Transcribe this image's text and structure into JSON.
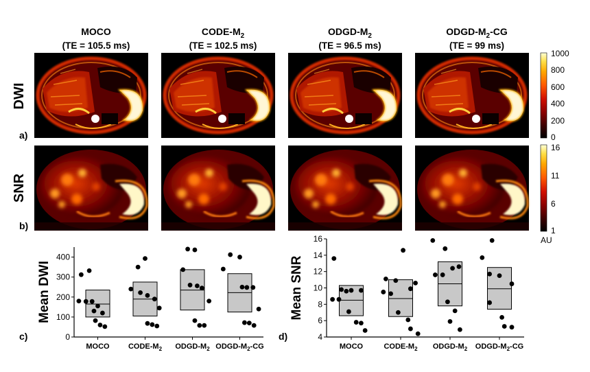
{
  "columns": [
    {
      "name": "MOCO",
      "sub": "",
      "te": "(TE = 105.5 ms)"
    },
    {
      "name": "CODE-M",
      "sub": "2",
      "te": "(TE = 102.5 ms)"
    },
    {
      "name": "ODGD-M",
      "sub": "2",
      "te": "(TE = 96.5 ms)"
    },
    {
      "name": "ODGD-M",
      "sub": "2",
      "suffix": "-CG",
      "te": "(TE = 99 ms)"
    }
  ],
  "rows": {
    "dwi_label": "DWI",
    "snr_label": "SNR",
    "a_label": "a)",
    "b_label": "b)",
    "c_label": "c)",
    "d_label": "d)"
  },
  "colorbars": {
    "dwi_ticks": [
      "1000",
      "800",
      "600",
      "400",
      "200",
      "0"
    ],
    "snr_ticks": [
      "16",
      "11",
      "6",
      "1"
    ],
    "snr_unit": "AU",
    "colormap": [
      "#000000",
      "#3a0000",
      "#8a0000",
      "#d21000",
      "#ff5a00",
      "#ffa800",
      "#ffe04a",
      "#ffffd8"
    ]
  },
  "chart_data": [
    {
      "type": "scatter",
      "ylabel": "Mean DWI",
      "ylim": [
        0,
        450
      ],
      "yticks": [
        0,
        100,
        200,
        300,
        400
      ],
      "categories": [
        "MOCO",
        "CODE-M2",
        "ODGD-M2",
        "ODGD-M2-CG"
      ],
      "tick_labels": [
        {
          "main": "MOCO",
          "sub": "",
          "suffix": ""
        },
        {
          "main": "CODE-M",
          "sub": "2",
          "suffix": ""
        },
        {
          "main": "ODGD-M",
          "sub": "2",
          "suffix": ""
        },
        {
          "main": "ODGD-M",
          "sub": "2",
          "suffix": "-CG"
        }
      ],
      "boxes": [
        {
          "low": 100,
          "mean": 165,
          "high": 235
        },
        {
          "low": 105,
          "mean": 190,
          "high": 275
        },
        {
          "low": 135,
          "mean": 235,
          "high": 337
        },
        {
          "low": 125,
          "mean": 222,
          "high": 317
        }
      ],
      "points": [
        [
          [
            -0.35,
            312
          ],
          [
            -0.18,
            332
          ],
          [
            -0.4,
            180
          ],
          [
            -0.25,
            178
          ],
          [
            -0.12,
            178
          ],
          [
            -0.08,
            130
          ],
          [
            0.0,
            155
          ],
          [
            0.1,
            120
          ],
          [
            -0.05,
            82
          ],
          [
            0.05,
            60
          ],
          [
            0.15,
            52
          ]
        ],
        [
          [
            0.0,
            393
          ],
          [
            -0.15,
            350
          ],
          [
            -0.3,
            240
          ],
          [
            -0.1,
            222
          ],
          [
            0.05,
            208
          ],
          [
            0.2,
            190
          ],
          [
            0.3,
            145
          ],
          [
            0.05,
            68
          ],
          [
            0.15,
            62
          ],
          [
            0.25,
            55
          ]
        ],
        [
          [
            -0.1,
            440
          ],
          [
            0.05,
            436
          ],
          [
            -0.2,
            337
          ],
          [
            -0.05,
            260
          ],
          [
            0.1,
            256
          ],
          [
            0.2,
            245
          ],
          [
            0.35,
            180
          ],
          [
            0.05,
            82
          ],
          [
            0.15,
            58
          ],
          [
            0.25,
            58
          ]
        ],
        [
          [
            -0.2,
            412
          ],
          [
            0.0,
            400
          ],
          [
            -0.35,
            340
          ],
          [
            0.05,
            250
          ],
          [
            0.15,
            248
          ],
          [
            0.28,
            248
          ],
          [
            0.4,
            140
          ],
          [
            0.1,
            72
          ],
          [
            0.2,
            70
          ],
          [
            0.3,
            58
          ]
        ]
      ]
    },
    {
      "type": "scatter",
      "ylabel": "Mean SNR",
      "ylim": [
        4,
        16
      ],
      "yticks": [
        4,
        6,
        8,
        10,
        12,
        14,
        16
      ],
      "categories": [
        "MOCO",
        "CODE-M2",
        "ODGD-M2",
        "ODGD-M2-CG"
      ],
      "tick_labels": [
        {
          "main": "MOCO",
          "sub": "",
          "suffix": ""
        },
        {
          "main": "CODE-M",
          "sub": "2",
          "suffix": ""
        },
        {
          "main": "ODGD-M",
          "sub": "2",
          "suffix": ""
        },
        {
          "main": "ODGD-M",
          "sub": "2",
          "suffix": "-CG"
        }
      ],
      "boxes": [
        {
          "low": 6.6,
          "mean": 8.5,
          "high": 10.3
        },
        {
          "low": 6.5,
          "mean": 8.7,
          "high": 11.0
        },
        {
          "low": 7.8,
          "mean": 10.5,
          "high": 13.2
        },
        {
          "low": 7.4,
          "mean": 9.9,
          "high": 12.5
        }
      ],
      "points": [
        [
          [
            -0.35,
            13.6
          ],
          [
            -0.2,
            9.8
          ],
          [
            -0.1,
            9.6
          ],
          [
            0.0,
            9.7
          ],
          [
            0.2,
            9.7
          ],
          [
            -0.38,
            8.6
          ],
          [
            -0.25,
            8.6
          ],
          [
            -0.05,
            7.1
          ],
          [
            0.1,
            5.8
          ],
          [
            0.2,
            5.7
          ],
          [
            0.28,
            4.8
          ]
        ],
        [
          [
            0.05,
            14.6
          ],
          [
            -0.3,
            11.1
          ],
          [
            -0.1,
            10.9
          ],
          [
            0.3,
            10.6
          ],
          [
            0.2,
            9.9
          ],
          [
            -0.35,
            9.5
          ],
          [
            -0.2,
            9.3
          ],
          [
            -0.05,
            7.0
          ],
          [
            0.15,
            6.1
          ],
          [
            0.2,
            5.0
          ],
          [
            0.35,
            4.4
          ]
        ],
        [
          [
            -0.35,
            15.8
          ],
          [
            -0.1,
            14.8
          ],
          [
            0.05,
            12.4
          ],
          [
            0.18,
            12.6
          ],
          [
            -0.3,
            11.6
          ],
          [
            -0.15,
            11.6
          ],
          [
            -0.05,
            8.3
          ],
          [
            0.1,
            7.2
          ],
          [
            0.0,
            5.9
          ],
          [
            0.2,
            4.9
          ]
        ],
        [
          [
            -0.15,
            15.8
          ],
          [
            -0.35,
            13.7
          ],
          [
            -0.2,
            11.7
          ],
          [
            0.0,
            11.5
          ],
          [
            0.25,
            10.5
          ],
          [
            -0.2,
            8.2
          ],
          [
            0.05,
            6.4
          ],
          [
            0.1,
            5.3
          ],
          [
            0.25,
            5.2
          ]
        ]
      ]
    }
  ]
}
